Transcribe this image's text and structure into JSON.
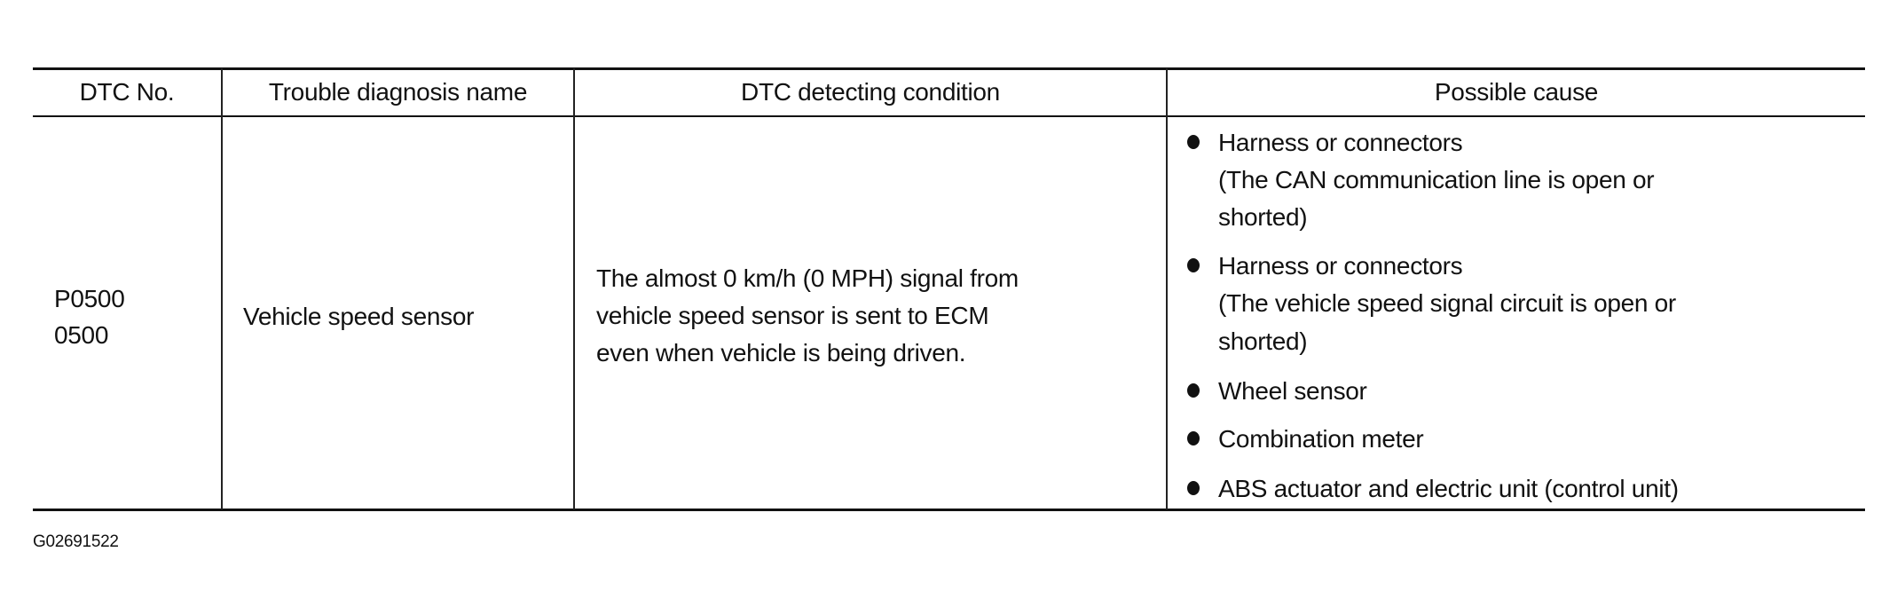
{
  "table": {
    "headers": [
      "DTC No.",
      "Trouble diagnosis name",
      "DTC detecting condition",
      "Possible cause"
    ],
    "row": {
      "dtc_no": [
        "P0500",
        "0500"
      ],
      "name": "Vehicle speed sensor",
      "condition": [
        "The almost 0 km/h (0 MPH) signal from",
        "vehicle speed sensor is sent to ECM",
        "even when vehicle is being driven."
      ],
      "causes": [
        {
          "lines": [
            "Harness or connectors",
            "(The CAN communication line is open or",
            "shorted)"
          ]
        },
        {
          "lines": [
            "Harness or connectors",
            "(The vehicle speed signal circuit is open or",
            "shorted)"
          ]
        },
        {
          "lines": [
            "Wheel sensor"
          ]
        },
        {
          "lines": [
            "Combination meter"
          ]
        },
        {
          "lines": [
            "ABS actuator and electric unit (control unit)"
          ]
        }
      ]
    }
  },
  "footer": {
    "figure_id": "G02691522"
  }
}
